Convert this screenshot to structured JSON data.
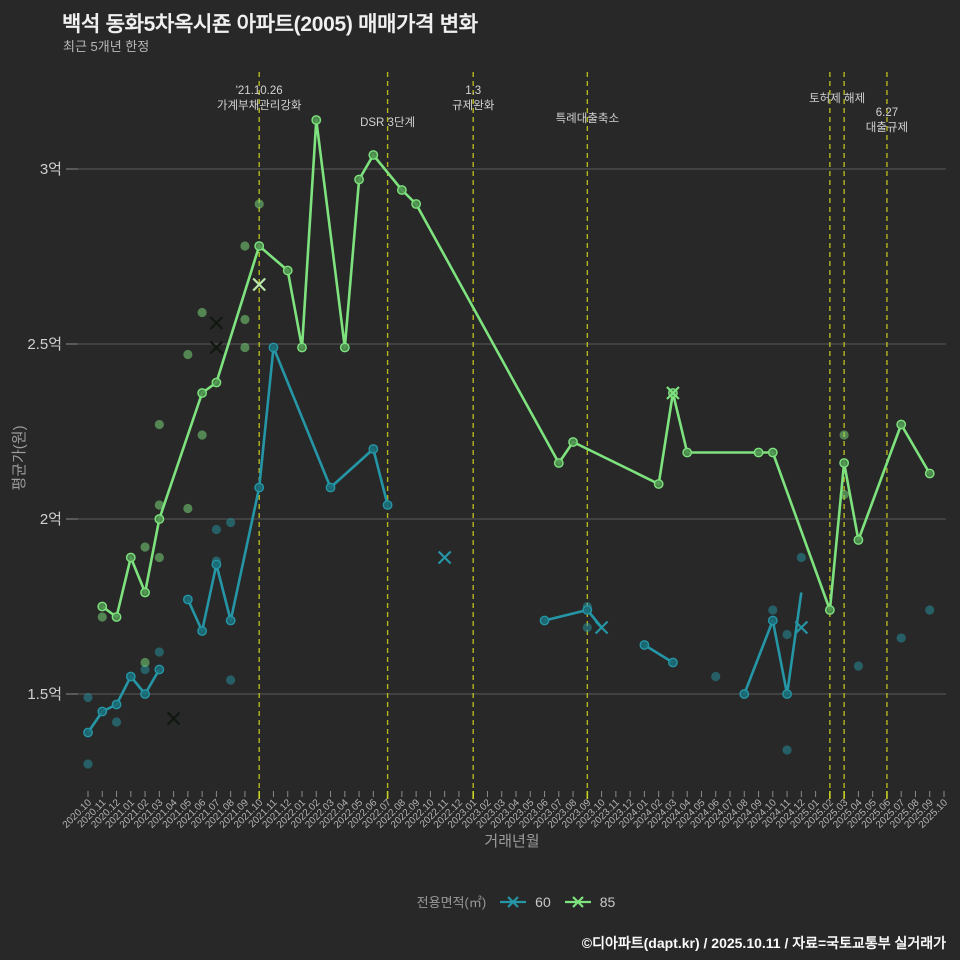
{
  "header": {
    "title": "백석 동화5차옥시죤 아파트(2005) 매매가격 변화",
    "subtitle": "최근 5개년 한정"
  },
  "footer": "©디아파트(dapt.kr) / 2025.10.11 / 자료=국토교통부 실거래가",
  "colors": {
    "background": "#282828",
    "grid": "#5a5a5a",
    "event_line": "#b4b61e",
    "event_tick": "#c9d123",
    "tick": "#8a8a8a",
    "x_tick_text": "#b4b4b4",
    "y_tick_text": "#d0d0d0",
    "axis_title": "#9c9c9c",
    "event_text": "#d2d2d2",
    "series60": "#2596a6",
    "series60_marker_fill": "#1b6c77",
    "series85": "#7ee37e",
    "series85_marker_fill": "#4f9150",
    "x_marker_dark": "#101810",
    "x_marker_light_green": "#b9e8a9"
  },
  "chart_data": {
    "type": "line",
    "title": "백석 동화5차옥시죤 아파트(2005) 매매가격 변화",
    "xlabel": "거래년월",
    "ylabel": "평균가(원)",
    "unit": "억",
    "grid": true,
    "ylim": [
      1.15,
      3.25
    ],
    "x_categories": [
      "2020.10",
      "2020.11",
      "2020.12",
      "2021.01",
      "2021.02",
      "2021.03",
      "2021.04",
      "2021.05",
      "2021.06",
      "2021.07",
      "2021.08",
      "2021.09",
      "2021.10",
      "2021.11",
      "2021.12",
      "2022.01",
      "2022.02",
      "2022.03",
      "2022.04",
      "2022.05",
      "2022.06",
      "2022.07",
      "2022.08",
      "2022.09",
      "2022.10",
      "2022.11",
      "2022.12",
      "2023.01",
      "2023.02",
      "2023.03",
      "2023.04",
      "2023.05",
      "2023.06",
      "2023.07",
      "2023.08",
      "2023.09",
      "2023.10",
      "2023.11",
      "2023.12",
      "2024.01",
      "2024.02",
      "2024.03",
      "2024.04",
      "2024.05",
      "2024.06",
      "2024.07",
      "2024.08",
      "2024.09",
      "2024.10",
      "2024.11",
      "2024.12",
      "2025.01",
      "2025.02",
      "2025.03",
      "2025.04",
      "2025.05",
      "2025.06",
      "2025.07",
      "2025.08",
      "2025.09",
      "2025.10"
    ],
    "y_ticks": [
      {
        "value": 3.0,
        "label": "3억"
      },
      {
        "value": 2.5,
        "label": "2.5억"
      },
      {
        "value": 2.0,
        "label": "2억"
      },
      {
        "value": 1.5,
        "label": "1.5억"
      }
    ],
    "series": [
      {
        "name": "60",
        "color_key": "series60",
        "segments": [
          [
            [
              0,
              1.39
            ],
            [
              1,
              1.45
            ],
            [
              2,
              1.47
            ],
            [
              3,
              1.55
            ],
            [
              4,
              1.5
            ],
            [
              5,
              1.57
            ]
          ],
          [
            [
              7,
              1.77
            ],
            [
              8,
              1.68
            ],
            [
              9,
              1.87
            ],
            [
              10,
              1.71
            ],
            [
              12,
              2.09
            ],
            [
              13,
              2.49
            ],
            [
              17,
              2.09
            ],
            [
              20,
              2.2
            ],
            [
              21,
              2.04
            ]
          ],
          [
            [
              32,
              1.71
            ],
            [
              35,
              1.74
            ],
            [
              36,
              1.69,
              0
            ]
          ],
          [
            [
              39,
              1.64
            ],
            [
              41,
              1.59
            ]
          ],
          [
            [
              46,
              1.5
            ],
            [
              48,
              1.71
            ],
            [
              49,
              1.5
            ],
            [
              50,
              1.79,
              0
            ]
          ]
        ]
      },
      {
        "name": "85",
        "color_key": "series85",
        "segments": [
          [
            [
              1,
              1.75
            ],
            [
              2,
              1.72
            ],
            [
              3,
              1.89
            ],
            [
              4,
              1.79
            ],
            [
              5,
              2.0
            ],
            [
              8,
              2.36
            ],
            [
              9,
              2.39
            ],
            [
              12,
              2.78
            ],
            [
              14,
              2.71
            ],
            [
              15,
              2.49
            ],
            [
              16,
              3.14
            ],
            [
              18,
              2.49
            ],
            [
              19,
              2.97
            ],
            [
              20,
              3.04
            ],
            [
              22,
              2.94
            ],
            [
              23,
              2.9
            ],
            [
              33,
              2.16
            ],
            [
              34,
              2.22
            ],
            [
              40,
              2.1
            ],
            [
              41,
              2.36
            ],
            [
              42,
              2.19
            ],
            [
              47,
              2.19
            ],
            [
              48,
              2.19
            ],
            [
              52,
              1.74
            ],
            [
              53,
              2.16
            ],
            [
              54,
              1.94
            ],
            [
              57,
              2.27
            ],
            [
              59,
              2.13
            ]
          ]
        ]
      }
    ],
    "scatter": [
      {
        "series": "60",
        "points": [
          [
            0,
            1.49
          ],
          [
            0,
            1.3
          ],
          [
            2,
            1.42
          ],
          [
            4,
            1.57
          ],
          [
            5,
            1.62
          ],
          [
            9,
            1.97
          ],
          [
            9,
            1.88
          ],
          [
            10,
            1.99
          ],
          [
            10,
            1.54
          ],
          [
            35,
            1.75
          ],
          [
            35,
            1.69
          ],
          [
            44,
            1.55
          ],
          [
            48,
            1.74
          ],
          [
            49,
            1.67
          ],
          [
            49,
            1.34
          ],
          [
            50,
            1.89
          ],
          [
            54,
            1.58
          ],
          [
            57,
            1.66
          ],
          [
            59,
            1.74
          ]
        ]
      },
      {
        "series": "85",
        "points": [
          [
            1,
            1.72
          ],
          [
            4,
            1.92
          ],
          [
            4,
            1.59
          ],
          [
            5,
            2.27
          ],
          [
            5,
            2.04
          ],
          [
            5,
            1.89
          ],
          [
            7,
            2.47
          ],
          [
            7,
            2.03
          ],
          [
            8,
            2.59
          ],
          [
            8,
            2.24
          ],
          [
            11,
            2.78
          ],
          [
            11,
            2.57
          ],
          [
            11,
            2.49
          ],
          [
            12,
            2.9
          ],
          [
            53,
            2.24
          ],
          [
            53,
            2.07
          ]
        ]
      }
    ],
    "x_markers": [
      {
        "i": 6,
        "v": 1.43,
        "color_key": "x_marker_dark"
      },
      {
        "i": 9,
        "v": 2.56,
        "color_key": "x_marker_dark"
      },
      {
        "i": 9,
        "v": 2.49,
        "color_key": "x_marker_dark"
      },
      {
        "i": 12,
        "v": 2.67,
        "color_key": "x_marker_light_green"
      },
      {
        "i": 25,
        "v": 1.89,
        "color_key": "series60"
      },
      {
        "i": 36,
        "v": 1.69,
        "color_key": "series60"
      },
      {
        "i": 41,
        "v": 2.36,
        "color_key": "series85"
      },
      {
        "i": 50,
        "v": 1.69,
        "color_key": "series60"
      }
    ],
    "events": [
      {
        "i": 12,
        "lines": [
          "'21.10.26",
          "가계부채관리강화"
        ],
        "line_y": [
          94,
          109
        ],
        "dx": 0
      },
      {
        "i": 21,
        "lines": [
          "DSR 3단계"
        ],
        "line_y": [
          126
        ],
        "dx": 0
      },
      {
        "i": 27,
        "lines": [
          "1.3",
          "규제완화"
        ],
        "line_y": [
          94,
          109
        ],
        "dx": 0
      },
      {
        "i": 35,
        "lines": [
          "특례대출축소"
        ],
        "line_y": [
          122
        ],
        "dx": 0
      },
      {
        "i": 52,
        "lines": [],
        "line_y": [],
        "dx": 0
      },
      {
        "i": 53,
        "lines": [
          "토허제 해제"
        ],
        "line_y": [
          102
        ],
        "dx": -7
      },
      {
        "i": 56,
        "lines": [
          "6.27",
          "대출규제"
        ],
        "line_y": [
          116,
          131
        ],
        "dx": 0
      }
    ],
    "legend": {
      "title": "전용면적(㎡)",
      "items": [
        "60",
        "85"
      ]
    }
  }
}
